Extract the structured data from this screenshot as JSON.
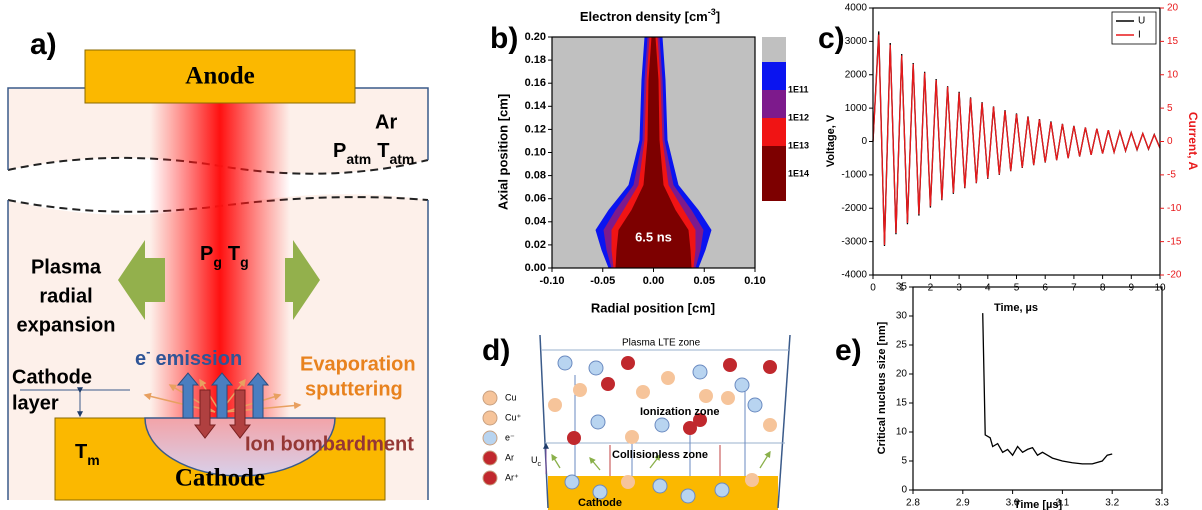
{
  "panel_a": {
    "label": "a)",
    "anode": "Anode",
    "gas": "Ar",
    "p_atm": {
      "symbol": "P",
      "sub": "atm"
    },
    "t_atm": {
      "symbol": "T",
      "sub": "atm"
    },
    "expansion": [
      "Plasma",
      "radial",
      "expansion"
    ],
    "p_g": {
      "symbol": "P",
      "sub": "g"
    },
    "t_g": {
      "symbol": "T",
      "sub": "g"
    },
    "emission": {
      "symbol": "e",
      "sup": "-",
      "text": "emission"
    },
    "evaporation": [
      "Evaporation",
      "sputtering"
    ],
    "cathode_layer": [
      "Cathode",
      "layer"
    ],
    "t_m": {
      "symbol": "T",
      "sub": "m"
    },
    "ion": "Ion bombardment",
    "cathode": "Cathode"
  },
  "panel_d": {
    "label": "d)",
    "lte": "Plasma LTE zone",
    "ionization": "Ionization zone",
    "collisionless": "Collisionless zone",
    "cathode": "Cathode",
    "u_c": {
      "symbol": "U",
      "sub": "c"
    },
    "legend": [
      {
        "name": "Cu",
        "color": "#f6c49a"
      },
      {
        "name": "Cu⁺",
        "color": "#f6c49a"
      },
      {
        "name": "e⁻",
        "color": "#b8d4f0"
      },
      {
        "name": "Ar",
        "color": "#c0282d"
      },
      {
        "name": "Ar⁺",
        "color": "#c0282d"
      }
    ]
  },
  "chart_data": [
    {
      "type": "contour",
      "label": "b)",
      "title": {
        "main": "Electron density [cm",
        "sup": "-3",
        "tail": "]"
      },
      "x_label": "Radial position [cm]",
      "y_label": "Axial position [cm]",
      "annotation": "6.5 ns",
      "background_color": "#c0c0c0",
      "levels": [
        {
          "label": "1E11",
          "color": "#0a14f0"
        },
        {
          "label": "1E12",
          "color": "#7d1a8c"
        },
        {
          "label": "1E13",
          "color": "#f01414"
        },
        {
          "label": "1E14",
          "color": "#7d0000"
        }
      ],
      "xlim": [
        -0.1,
        0.1
      ],
      "xticks": [
        {
          "value": -0.1,
          "label": "-0.10"
        },
        {
          "value": -0.05,
          "label": "-0.05"
        },
        {
          "value": 0,
          "label": "0.00"
        },
        {
          "value": 0.05,
          "label": "0.05"
        },
        {
          "value": 0.1,
          "label": "0.10"
        }
      ],
      "ylim": [
        0,
        0.2
      ],
      "yticks": [
        {
          "value": 0,
          "label": "0.00"
        },
        {
          "value": 0.02,
          "label": "0.02"
        },
        {
          "value": 0.04,
          "label": "0.04"
        },
        {
          "value": 0.06,
          "label": "0.06"
        },
        {
          "value": 0.08,
          "label": "0.08"
        },
        {
          "value": 0.1,
          "label": "0.10"
        },
        {
          "value": 0.12,
          "label": "0.12"
        },
        {
          "value": 0.14,
          "label": "0.14"
        },
        {
          "value": 0.16,
          "label": "0.16"
        },
        {
          "value": 0.18,
          "label": "0.18"
        },
        {
          "value": 0.2,
          "label": "0.20"
        }
      ]
    },
    {
      "type": "line",
      "label": "c)",
      "x_label": "Time, µs",
      "y_label": "Voltage, V",
      "y2_label": "Current, A",
      "legend": "top-right",
      "x": [
        0,
        0.2,
        0.4,
        0.6,
        0.8,
        1,
        1.2,
        1.4,
        1.6,
        1.8,
        2,
        2.2,
        2.4,
        2.6,
        2.8,
        3,
        3.2,
        3.4,
        3.6,
        3.8,
        4,
        4.2,
        4.4,
        4.6,
        4.8,
        5,
        5.2,
        5.4,
        5.6,
        5.8,
        6,
        6.2,
        6.4,
        6.6,
        6.8,
        7,
        7.2,
        7.4,
        7.6,
        7.8,
        8,
        8.2,
        8.4,
        8.6,
        8.8,
        9,
        9.2,
        9.4,
        9.6,
        9.8,
        10
      ],
      "series": [
        {
          "name": "U",
          "color": "#000000",
          "values": [
            0,
            3300,
            -3130,
            2950,
            -2780,
            2620,
            -2480,
            2350,
            -2220,
            2090,
            -1980,
            1870,
            -1760,
            1660,
            -1570,
            1490,
            -1400,
            1320,
            -1250,
            1180,
            -1120,
            1050,
            -1000,
            940,
            -890,
            840,
            -790,
            750,
            -710,
            670,
            -630,
            600,
            -560,
            530,
            -500,
            470,
            -450,
            420,
            -400,
            380,
            -360,
            340,
            -320,
            300,
            -280,
            270,
            -250,
            240,
            -230,
            210,
            -200
          ]
        },
        {
          "name": "I",
          "color": "#e8191b",
          "axis": "y2",
          "values": [
            0,
            16,
            -15.5,
            14.5,
            -13.7,
            12.9,
            -12.2,
            11.6,
            -10.9,
            10.3,
            -9.7,
            9.2,
            -8.7,
            8.2,
            -7.7,
            7.3,
            -6.9,
            6.5,
            -6.2,
            5.8,
            -5.5,
            5.2,
            -4.9,
            4.6,
            -4.4,
            4.1,
            -3.9,
            3.7,
            -3.5,
            3.3,
            -3.1,
            2.9,
            -2.8,
            2.6,
            -2.5,
            2.3,
            -2.2,
            2.1,
            -2,
            1.9,
            -1.8,
            1.7,
            -1.6,
            1.5,
            -1.4,
            1.3,
            -1.2,
            1.2,
            -1.1,
            1,
            -1
          ]
        }
      ],
      "xlim": [
        0,
        10
      ],
      "xticks": [
        0,
        1,
        2,
        3,
        4,
        5,
        6,
        7,
        8,
        9,
        10
      ],
      "ylim": [
        -4000,
        4000
      ],
      "yticks": [
        -4000,
        -3000,
        -2000,
        -1000,
        0,
        1000,
        2000,
        3000,
        4000
      ],
      "y2lim": [
        -20,
        20
      ],
      "y2ticks": [
        -20,
        -15,
        -10,
        -5,
        0,
        5,
        10,
        15,
        20
      ]
    },
    {
      "type": "line",
      "label": "e)",
      "x_label": "Time [µs]",
      "y_label": "Critical nucleus size [nm]",
      "color": "#000000",
      "x": [
        2.94,
        2.945,
        2.955,
        2.96,
        2.97,
        2.98,
        2.99,
        3,
        3.01,
        3.02,
        3.03,
        3.04,
        3.05,
        3.06,
        3.07,
        3.08,
        3.1,
        3.12,
        3.14,
        3.16,
        3.18,
        3.19,
        3.2
      ],
      "values": [
        30.5,
        9.5,
        9,
        7.5,
        8,
        6.5,
        7,
        6,
        7.5,
        6.5,
        7,
        7.3,
        6,
        6.5,
        6,
        5.5,
        5,
        4.7,
        4.5,
        4.5,
        5,
        6,
        6.2
      ],
      "xlim": [
        2.8,
        3.3
      ],
      "xticks": [
        2.8,
        2.9,
        {
          "value": 3,
          "label": "3.0"
        },
        3.1,
        3.2,
        3.3
      ],
      "ylim": [
        0,
        35
      ],
      "yticks": [
        0,
        5,
        10,
        15,
        20,
        25,
        30,
        35
      ]
    }
  ]
}
